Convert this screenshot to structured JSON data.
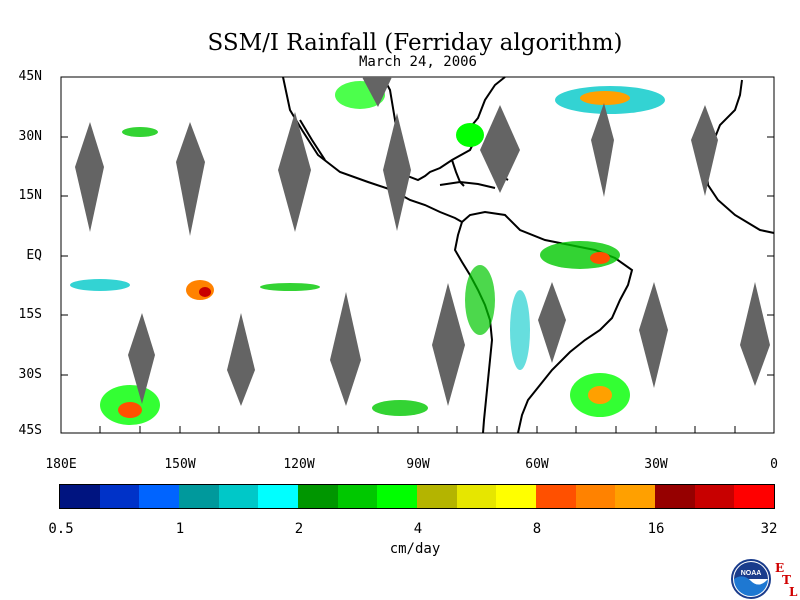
{
  "title": "SSM/I Rainfall (Ferriday algorithm)",
  "subtitle": "March 24, 2006",
  "lat_labels": [
    "45N",
    "30N",
    "15N",
    "EQ",
    "15S",
    "30S",
    "45S"
  ],
  "lon_labels": [
    "180E",
    "150W",
    "120W",
    "90W",
    "60W",
    "30W",
    "0"
  ],
  "colorbar": {
    "units": "cm/day",
    "tick_labels": [
      "0.5",
      "1",
      "2",
      "4",
      "8",
      "16",
      "32"
    ],
    "colors": [
      "#001480",
      "#0032c8",
      "#0064ff",
      "#00999c",
      "#00c8c8",
      "#00ffff",
      "#009600",
      "#00c800",
      "#00ff00",
      "#b4b400",
      "#e6e600",
      "#ffff00",
      "#ff5000",
      "#ff8200",
      "#ffa000",
      "#960000",
      "#c80000",
      "#ff0000"
    ]
  },
  "logo": {
    "icon": "noaa-logo-icon",
    "text": "NOAA",
    "etl": [
      "E",
      "T",
      "L"
    ]
  }
}
